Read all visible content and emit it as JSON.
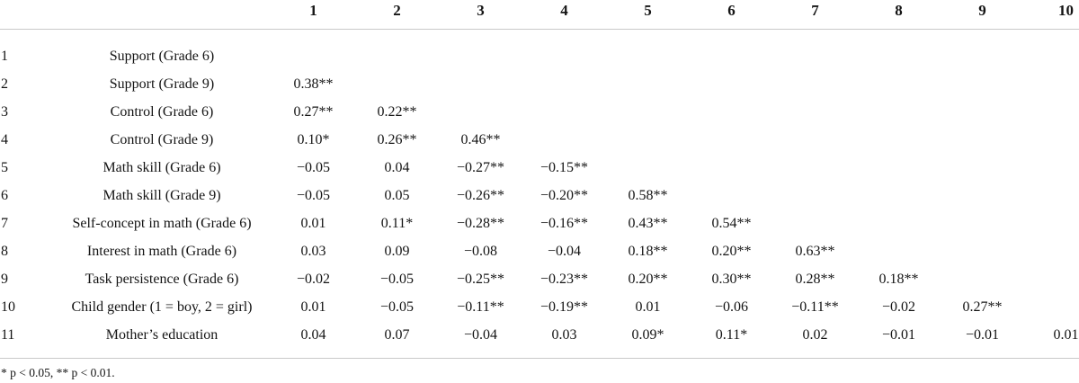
{
  "table": {
    "column_headers": [
      "1",
      "2",
      "3",
      "4",
      "5",
      "6",
      "7",
      "8",
      "9",
      "10"
    ],
    "rows": [
      {
        "num": "1",
        "label": "Support (Grade 6)",
        "values": []
      },
      {
        "num": "2",
        "label": "Support (Grade 9)",
        "values": [
          "0.38**"
        ]
      },
      {
        "num": "3",
        "label": "Control (Grade 6)",
        "values": [
          "0.27**",
          "0.22**"
        ]
      },
      {
        "num": "4",
        "label": "Control (Grade 9)",
        "values": [
          "0.10*",
          "0.26**",
          "0.46**"
        ]
      },
      {
        "num": "5",
        "label": "Math skill (Grade 6)",
        "values": [
          "−0.05",
          "0.04",
          "−0.27**",
          "−0.15**"
        ]
      },
      {
        "num": "6",
        "label": "Math skill (Grade 9)",
        "values": [
          "−0.05",
          "0.05",
          "−0.26**",
          "−0.20**",
          "0.58**"
        ]
      },
      {
        "num": "7",
        "label": "Self-concept in math (Grade 6)",
        "values": [
          "0.01",
          "0.11*",
          "−0.28**",
          "−0.16**",
          "0.43**",
          "0.54**"
        ]
      },
      {
        "num": "8",
        "label": "Interest in math (Grade 6)",
        "values": [
          "0.03",
          "0.09",
          "−0.08",
          "−0.04",
          "0.18**",
          "0.20**",
          "0.63**"
        ]
      },
      {
        "num": "9",
        "label": "Task persistence (Grade 6)",
        "values": [
          "−0.02",
          "−0.05",
          "−0.25**",
          "−0.23**",
          "0.20**",
          "0.30**",
          "0.28**",
          "0.18**"
        ]
      },
      {
        "num": "10",
        "label": "Child gender (1 = boy, 2 = girl)",
        "values": [
          "0.01",
          "−0.05",
          "−0.11**",
          "−0.19**",
          "0.01",
          "−0.06",
          "−0.11**",
          "−0.02",
          "0.27**"
        ]
      },
      {
        "num": "11",
        "label": "Mother’s education",
        "values": [
          "0.04",
          "0.07",
          "−0.04",
          "0.03",
          "0.09*",
          "0.11*",
          "0.02",
          "−0.01",
          "−0.01",
          "0.01"
        ]
      }
    ],
    "footnote": "* p < 0.05, ** p < 0.01.",
    "colors": {
      "text": "#141414",
      "rule_line": "#c9c9c9",
      "background": "#ffffff"
    }
  }
}
